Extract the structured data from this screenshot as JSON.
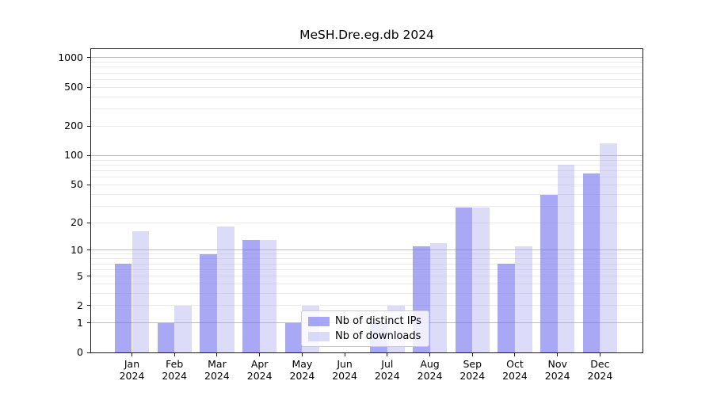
{
  "page": {
    "background": "#ffffff"
  },
  "chart_data": {
    "type": "bar",
    "title": "MeSH.Dre.eg.db 2024",
    "categories": [
      "Jan",
      "Feb",
      "Mar",
      "Apr",
      "May",
      "Jun",
      "Jul",
      "Aug",
      "Sep",
      "Oct",
      "Nov",
      "Dec"
    ],
    "category_year": "2024",
    "series": [
      {
        "name": "Nb of distinct IPs",
        "color": "#a8a8f5",
        "color_rgba": "rgba(110,110,238,0.6)",
        "values": [
          7,
          1,
          9,
          13,
          1,
          0,
          1,
          11,
          29,
          7,
          39,
          66
        ]
      },
      {
        "name": "Nb of downloads",
        "color": "#dcdcf9",
        "color_rgba": "rgba(168,168,240,0.4)",
        "values": [
          16,
          2,
          18,
          13,
          2,
          0,
          2,
          12,
          29,
          11,
          80,
          134
        ]
      }
    ],
    "yscale": "log1p",
    "ylim": [
      0,
      1225
    ],
    "y_ticks": [
      0,
      1,
      2,
      5,
      10,
      20,
      50,
      100,
      200,
      500,
      1000
    ],
    "major_gridlines": [
      1,
      10,
      100,
      1000
    ],
    "minor_gridlines": [
      2,
      3,
      4,
      5,
      6,
      7,
      8,
      9,
      20,
      30,
      40,
      50,
      60,
      70,
      80,
      90,
      200,
      300,
      400,
      500,
      600,
      700,
      800,
      900
    ],
    "grid": true,
    "legend": {
      "position": "lower-center",
      "labels": [
        "Nb of distinct IPs",
        "Nb of downloads"
      ]
    }
  },
  "colors": {
    "major_grid": "#bdbdbd",
    "minor_grid": "#eaeaea",
    "spine": "#1a1a1a",
    "text": "#000000"
  }
}
